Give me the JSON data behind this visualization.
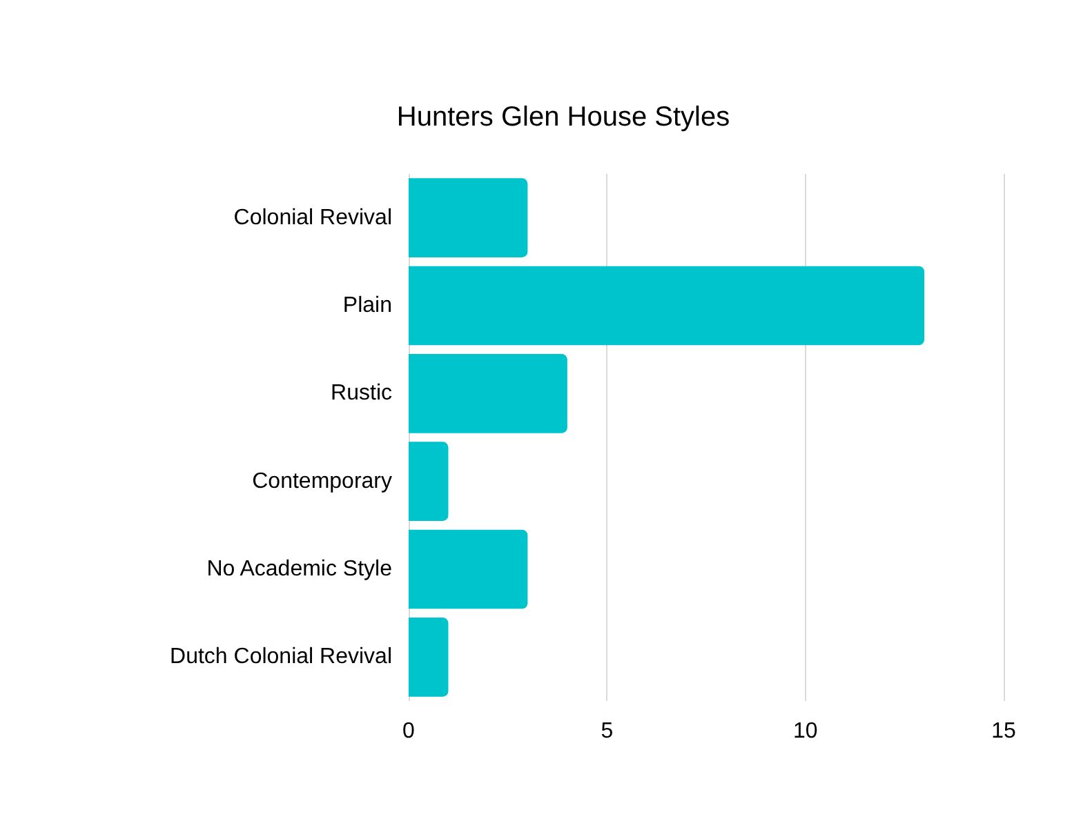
{
  "chart_data": {
    "type": "bar",
    "orientation": "horizontal",
    "title": "Hunters Glen House Styles",
    "categories": [
      "Colonial Revival",
      "Plain",
      "Rustic",
      "Contemporary",
      "No Academic Style",
      "Dutch Colonial Revival"
    ],
    "values": [
      3,
      13,
      4,
      1,
      3,
      1
    ],
    "color": "#00c4cc",
    "xlim": [
      0,
      15
    ],
    "xticks": [
      0,
      5,
      10,
      15
    ],
    "grid": "x"
  }
}
